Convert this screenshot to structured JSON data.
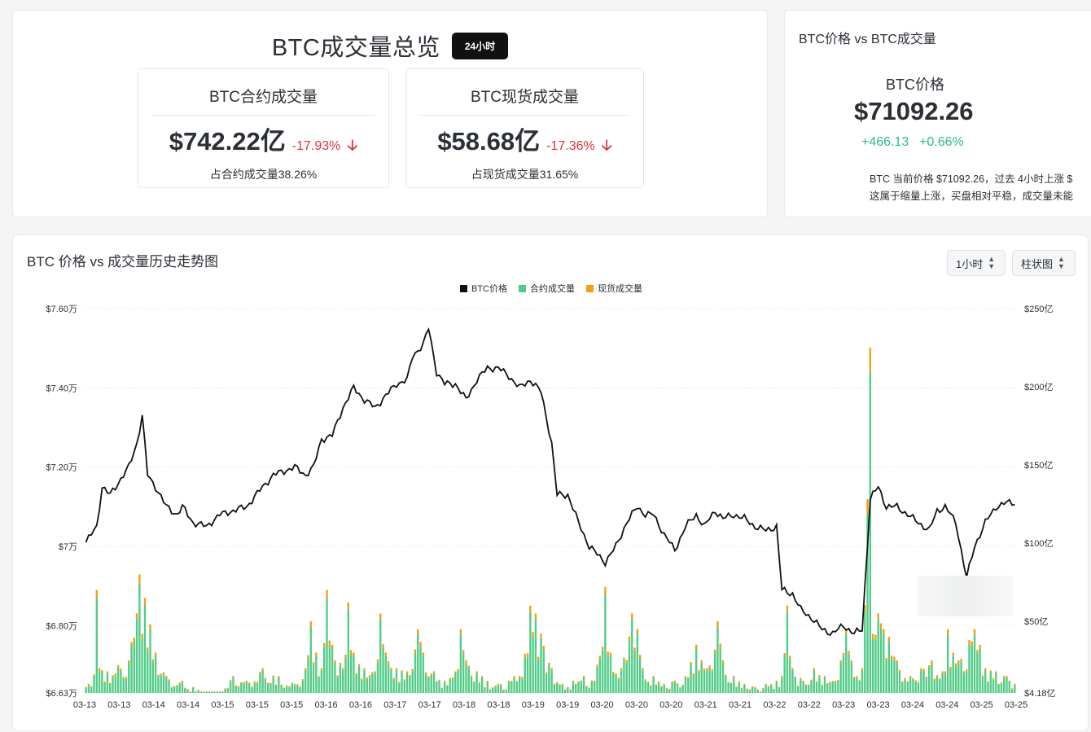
{
  "overview": {
    "title": "BTC成交量总览",
    "badge": "24小时",
    "contract": {
      "title": "BTC合约成交量",
      "value": "$742.22亿",
      "change": "-17.93%",
      "share": "占合约成交量38.26%"
    },
    "spot": {
      "title": "BTC现货成交量",
      "value": "$58.68亿",
      "change": "-17.36%",
      "share": "占现货成交量31.65%"
    }
  },
  "price_card": {
    "title": "BTC价格 vs BTC成交量",
    "label": "BTC价格",
    "price": "$71092.26",
    "change": "+466.13",
    "change_pct": "+0.66%",
    "desc_line1": "BTC 当前价格 $71092.26，过去 4小时上涨 $",
    "desc_line2": "这属于缩量上涨，买盘相对平稳，成交量未能"
  },
  "chart_card": {
    "title": "BTC 价格 vs 成交量历史走势图",
    "interval": "1小时",
    "chart_type": "柱状图"
  },
  "colors": {
    "price": "#111111",
    "contract": "#4fcc86",
    "spot": "#f5a00a",
    "down": "#e0323f",
    "up": "#2ebd85"
  },
  "chart_data": {
    "type": "bar",
    "legend": [
      "BTC价格",
      "合约成交量",
      "现货成交量"
    ],
    "left_axis": {
      "ticks": [
        "$7.60万",
        "$7.40万",
        "$7.20万",
        "$7万",
        "$6.80万",
        "$6.63万"
      ],
      "values": [
        76000,
        74000,
        72000,
        70000,
        68000,
        66300
      ]
    },
    "right_axis": {
      "ticks": [
        "$250亿",
        "$200亿",
        "$150亿",
        "$100亿",
        "$50亿",
        "$4.18亿"
      ],
      "values": [
        250,
        200,
        150,
        100,
        50,
        4.18
      ]
    },
    "x_labels": [
      "03-13",
      "03-13",
      "03-14",
      "03-14",
      "03-15",
      "03-15",
      "03-15",
      "03-16",
      "03-16",
      "03-17",
      "03-17",
      "03-18",
      "03-18",
      "03-19",
      "03-19",
      "03-20",
      "03-20",
      "03-20",
      "03-21",
      "03-21",
      "03-22",
      "03-22",
      "03-23",
      "03-23",
      "03-24",
      "03-24",
      "03-25",
      "03-25"
    ],
    "price_keypoints": [
      [
        0,
        70100
      ],
      [
        4,
        70500
      ],
      [
        6,
        71500
      ],
      [
        9,
        71300
      ],
      [
        12,
        71600
      ],
      [
        16,
        72000
      ],
      [
        19,
        72600
      ],
      [
        21,
        73300
      ],
      [
        23,
        71800
      ],
      [
        26,
        71500
      ],
      [
        30,
        71000
      ],
      [
        34,
        70800
      ],
      [
        36,
        71000
      ],
      [
        40,
        70600
      ],
      [
        45,
        70500
      ],
      [
        50,
        70800
      ],
      [
        55,
        70900
      ],
      [
        60,
        71000
      ],
      [
        66,
        71500
      ],
      [
        70,
        71800
      ],
      [
        74,
        71900
      ],
      [
        78,
        72000
      ],
      [
        82,
        71800
      ],
      [
        85,
        72000
      ],
      [
        88,
        72700
      ],
      [
        92,
        72800
      ],
      [
        96,
        73500
      ],
      [
        100,
        74000
      ],
      [
        104,
        73700
      ],
      [
        108,
        73500
      ],
      [
        112,
        73800
      ],
      [
        116,
        74100
      ],
      [
        120,
        74200
      ],
      [
        122,
        74800
      ],
      [
        126,
        75100
      ],
      [
        128,
        75500
      ],
      [
        131,
        74400
      ],
      [
        134,
        74100
      ],
      [
        138,
        74100
      ],
      [
        142,
        73700
      ],
      [
        146,
        74200
      ],
      [
        150,
        74500
      ],
      [
        154,
        74500
      ],
      [
        158,
        74300
      ],
      [
        162,
        74000
      ],
      [
        166,
        74200
      ],
      [
        170,
        73900
      ],
      [
        174,
        72600
      ],
      [
        176,
        71300
      ],
      [
        180,
        71300
      ],
      [
        184,
        70600
      ],
      [
        188,
        70000
      ],
      [
        191,
        69800
      ],
      [
        194,
        69600
      ],
      [
        198,
        70000
      ],
      [
        202,
        70600
      ],
      [
        206,
        71000
      ],
      [
        209,
        70800
      ],
      [
        212,
        70800
      ],
      [
        216,
        70300
      ],
      [
        220,
        69900
      ],
      [
        224,
        70500
      ],
      [
        228,
        70800
      ],
      [
        231,
        70500
      ],
      [
        235,
        70900
      ],
      [
        238,
        70700
      ],
      [
        242,
        70800
      ],
      [
        246,
        70700
      ],
      [
        250,
        70500
      ],
      [
        254,
        70400
      ],
      [
        258,
        70500
      ],
      [
        260,
        68900
      ],
      [
        264,
        68800
      ],
      [
        267,
        68400
      ],
      [
        271,
        68200
      ],
      [
        275,
        67900
      ],
      [
        279,
        67800
      ],
      [
        283,
        68000
      ],
      [
        287,
        67800
      ],
      [
        290,
        67900
      ],
      [
        293,
        71200
      ],
      [
        296,
        71500
      ],
      [
        299,
        71000
      ],
      [
        303,
        71000
      ],
      [
        307,
        70800
      ],
      [
        311,
        70600
      ],
      [
        315,
        70400
      ],
      [
        318,
        70900
      ],
      [
        321,
        71000
      ],
      [
        325,
        70600
      ],
      [
        329,
        69200
      ],
      [
        332,
        70000
      ],
      [
        336,
        70600
      ],
      [
        340,
        71000
      ],
      [
        344,
        71100
      ],
      [
        347,
        71100
      ]
    ],
    "volume_keypoints": [
      [
        0,
        8
      ],
      [
        3,
        16
      ],
      [
        4,
        70
      ],
      [
        5,
        20
      ],
      [
        8,
        18
      ],
      [
        12,
        22
      ],
      [
        16,
        25
      ],
      [
        20,
        80
      ],
      [
        22,
        65
      ],
      [
        24,
        48
      ],
      [
        26,
        30
      ],
      [
        30,
        15
      ],
      [
        36,
        12
      ],
      [
        40,
        8
      ],
      [
        45,
        5
      ],
      [
        50,
        4
      ],
      [
        55,
        15
      ],
      [
        60,
        12
      ],
      [
        66,
        20
      ],
      [
        72,
        15
      ],
      [
        78,
        10
      ],
      [
        82,
        20
      ],
      [
        84,
        50
      ],
      [
        86,
        30
      ],
      [
        88,
        20
      ],
      [
        90,
        70
      ],
      [
        92,
        35
      ],
      [
        96,
        20
      ],
      [
        98,
        62
      ],
      [
        100,
        30
      ],
      [
        104,
        20
      ],
      [
        108,
        18
      ],
      [
        110,
        55
      ],
      [
        112,
        30
      ],
      [
        116,
        20
      ],
      [
        120,
        18
      ],
      [
        124,
        45
      ],
      [
        126,
        30
      ],
      [
        130,
        18
      ],
      [
        134,
        12
      ],
      [
        138,
        18
      ],
      [
        140,
        45
      ],
      [
        142,
        25
      ],
      [
        146,
        18
      ],
      [
        150,
        12
      ],
      [
        154,
        10
      ],
      [
        158,
        12
      ],
      [
        160,
        15
      ],
      [
        162,
        15
      ],
      [
        166,
        60
      ],
      [
        168,
        55
      ],
      [
        170,
        42
      ],
      [
        174,
        20
      ],
      [
        178,
        10
      ],
      [
        182,
        12
      ],
      [
        186,
        15
      ],
      [
        190,
        12
      ],
      [
        194,
        72
      ],
      [
        196,
        30
      ],
      [
        200,
        20
      ],
      [
        204,
        55
      ],
      [
        206,
        45
      ],
      [
        208,
        20
      ],
      [
        212,
        15
      ],
      [
        216,
        10
      ],
      [
        220,
        12
      ],
      [
        224,
        15
      ],
      [
        228,
        35
      ],
      [
        230,
        25
      ],
      [
        232,
        20
      ],
      [
        236,
        50
      ],
      [
        238,
        25
      ],
      [
        242,
        15
      ],
      [
        246,
        10
      ],
      [
        250,
        8
      ],
      [
        254,
        10
      ],
      [
        258,
        12
      ],
      [
        260,
        15
      ],
      [
        262,
        60
      ],
      [
        264,
        20
      ],
      [
        268,
        12
      ],
      [
        272,
        20
      ],
      [
        276,
        15
      ],
      [
        280,
        12
      ],
      [
        282,
        25
      ],
      [
        284,
        45
      ],
      [
        286,
        25
      ],
      [
        290,
        20
      ],
      [
        293,
        225
      ],
      [
        294,
        42
      ],
      [
        296,
        55
      ],
      [
        298,
        45
      ],
      [
        300,
        40
      ],
      [
        303,
        25
      ],
      [
        308,
        15
      ],
      [
        312,
        20
      ],
      [
        316,
        25
      ],
      [
        320,
        18
      ],
      [
        322,
        45
      ],
      [
        324,
        30
      ],
      [
        326,
        25
      ],
      [
        330,
        38
      ],
      [
        332,
        45
      ],
      [
        334,
        35
      ],
      [
        336,
        20
      ],
      [
        340,
        18
      ],
      [
        344,
        15
      ],
      [
        347,
        10
      ]
    ]
  }
}
